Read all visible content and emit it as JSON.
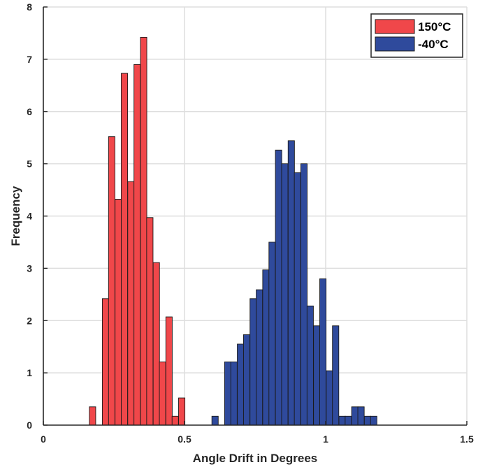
{
  "chart_data": {
    "type": "bar",
    "title": "",
    "xlabel": "Angle Drift in Degrees",
    "ylabel": "Frequency",
    "xlim": [
      0,
      1.5
    ],
    "ylim": [
      0,
      8
    ],
    "xticks": [
      0,
      0.5,
      1,
      1.5
    ],
    "xtick_labels": [
      "0",
      "0.5",
      "1",
      "1.5"
    ],
    "yticks": [
      0,
      1,
      2,
      3,
      4,
      5,
      6,
      7,
      8
    ],
    "ytick_labels": [
      "0",
      "1",
      "2",
      "3",
      "4",
      "5",
      "6",
      "7",
      "8"
    ],
    "grid": true,
    "legend_position": "top-right",
    "bin_width": 0.0225,
    "series": [
      {
        "name": "150°C",
        "color": "#f0474a",
        "bins": [
          {
            "start": 0.163,
            "value": 0.35
          },
          {
            "start": 0.186,
            "value": 0
          },
          {
            "start": 0.209,
            "value": 2.42
          },
          {
            "start": 0.231,
            "value": 5.52
          },
          {
            "start": 0.254,
            "value": 4.32
          },
          {
            "start": 0.276,
            "value": 6.73
          },
          {
            "start": 0.299,
            "value": 4.66
          },
          {
            "start": 0.321,
            "value": 6.9
          },
          {
            "start": 0.344,
            "value": 7.42
          },
          {
            "start": 0.366,
            "value": 3.97
          },
          {
            "start": 0.389,
            "value": 3.11
          },
          {
            "start": 0.411,
            "value": 1.21
          },
          {
            "start": 0.434,
            "value": 2.07
          },
          {
            "start": 0.456,
            "value": 0.17
          },
          {
            "start": 0.479,
            "value": 0.52
          }
        ]
      },
      {
        "name": "-40°C",
        "color": "#2f4a9c",
        "bins": [
          {
            "start": 0.597,
            "value": 0.17
          },
          {
            "start": 0.619,
            "value": 0
          },
          {
            "start": 0.642,
            "value": 1.21
          },
          {
            "start": 0.664,
            "value": 1.21
          },
          {
            "start": 0.687,
            "value": 1.55
          },
          {
            "start": 0.709,
            "value": 1.73
          },
          {
            "start": 0.732,
            "value": 2.42
          },
          {
            "start": 0.754,
            "value": 2.59
          },
          {
            "start": 0.777,
            "value": 2.97
          },
          {
            "start": 0.799,
            "value": 3.5
          },
          {
            "start": 0.822,
            "value": 5.26
          },
          {
            "start": 0.844,
            "value": 5.0
          },
          {
            "start": 0.867,
            "value": 5.44
          },
          {
            "start": 0.889,
            "value": 4.83
          },
          {
            "start": 0.912,
            "value": 5.0
          },
          {
            "start": 0.934,
            "value": 2.28
          },
          {
            "start": 0.957,
            "value": 1.9
          },
          {
            "start": 0.979,
            "value": 2.8
          },
          {
            "start": 1.002,
            "value": 1.04
          },
          {
            "start": 1.024,
            "value": 1.9
          },
          {
            "start": 1.047,
            "value": 0.17
          },
          {
            "start": 1.069,
            "value": 0.17
          },
          {
            "start": 1.092,
            "value": 0.35
          },
          {
            "start": 1.114,
            "value": 0.35
          },
          {
            "start": 1.137,
            "value": 0.17
          },
          {
            "start": 1.159,
            "value": 0.17
          }
        ]
      }
    ]
  }
}
